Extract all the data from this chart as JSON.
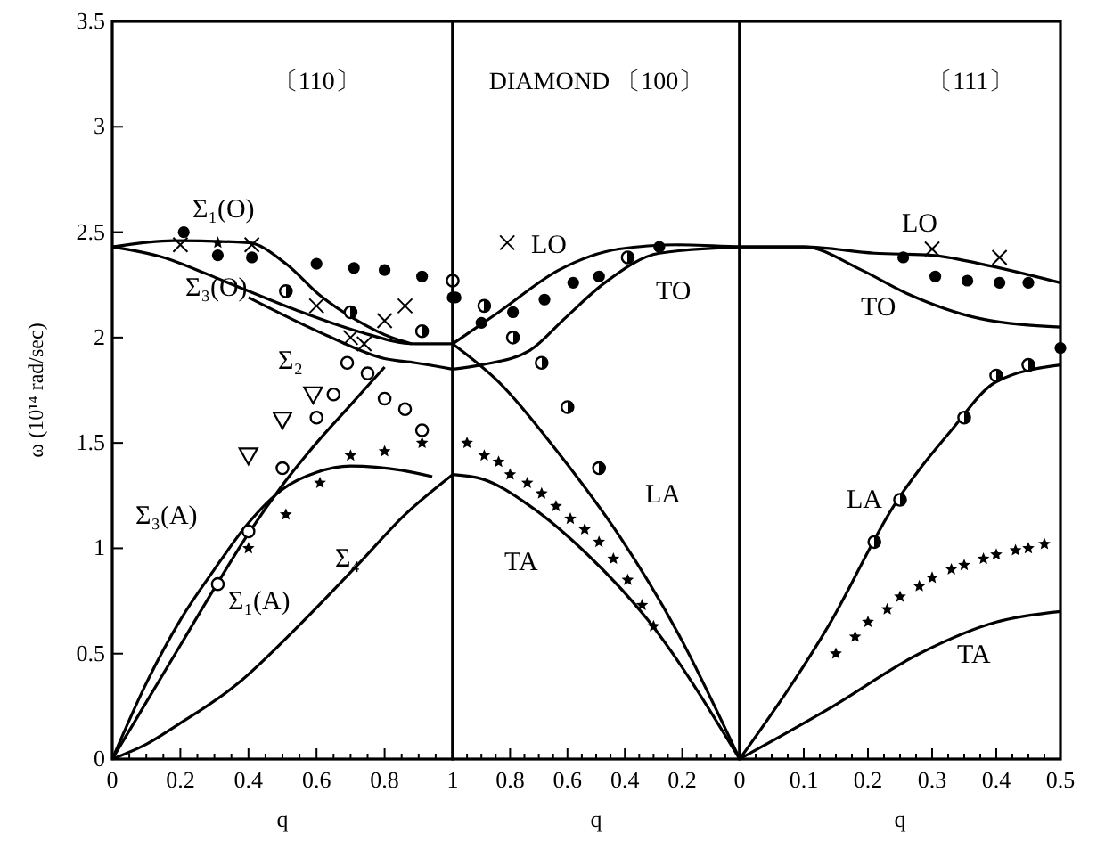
{
  "chart_data": [
    {
      "type": "line",
      "title": "〔110〕",
      "xlabel": "q",
      "ylabel": "ω (10¹⁴ rad/sec)",
      "xlim": [
        0,
        1
      ],
      "ylim": [
        0,
        3.5
      ],
      "xticks": [
        0,
        {
          "value": 0.05,
          "label": null
        },
        {
          "value": 0.1,
          "label": null
        },
        {
          "value": 0.15,
          "label": null
        },
        0.2,
        {
          "value": 0.25,
          "label": null
        },
        {
          "value": 0.3,
          "label": null
        },
        {
          "value": 0.35,
          "label": null
        },
        0.4,
        {
          "value": 0.45,
          "label": null
        },
        {
          "value": 0.5,
          "label": null
        },
        {
          "value": 0.55,
          "label": null
        },
        0.6,
        {
          "value": 0.65,
          "label": null
        },
        {
          "value": 0.7,
          "label": null
        },
        {
          "value": 0.75,
          "label": null
        },
        0.8,
        {
          "value": 0.85,
          "label": null
        },
        {
          "value": 0.9,
          "label": null
        },
        {
          "value": 0.95,
          "label": null
        },
        1
      ],
      "yticks": [
        0,
        0.5,
        1,
        1.5,
        2,
        2.5,
        3,
        3.5
      ],
      "series": [
        {
          "name": "Σ₁(O)",
          "color": "#000000",
          "x": [
            0,
            0.18,
            0.4,
            0.51,
            0.61,
            0.72,
            0.82,
            0.88
          ],
          "values": [
            2.43,
            2.46,
            2.45,
            2.35,
            2.2,
            2.08,
            2.0,
            1.97
          ]
        },
        {
          "name": "Σ₃(O)",
          "color": "#000000",
          "x": [
            0,
            0.15,
            0.28,
            0.37,
            0.54,
            0.72,
            0.89,
            1
          ],
          "values": [
            2.43,
            2.38,
            2.3,
            2.24,
            2.13,
            2.03,
            1.97,
            1.97
          ]
        },
        {
          "name": "Σ₂",
          "color": "#000000",
          "x": [
            0.4,
            0.63,
            0.8,
            0.89,
            1
          ],
          "values": [
            2.19,
            2.01,
            1.9,
            1.88,
            1.85
          ]
        },
        {
          "name": "Σ₃(A)",
          "color": "#000000",
          "x": [
            0,
            0.1,
            0.2,
            0.3,
            0.4,
            0.5,
            0.6,
            0.7,
            0.85,
            0.94
          ],
          "values": [
            0,
            0.36,
            0.66,
            0.9,
            1.12,
            1.28,
            1.36,
            1.39,
            1.37,
            1.34
          ]
        },
        {
          "name": "Σ₁(A)",
          "color": "#000000",
          "x": [
            0,
            0.1,
            0.2,
            0.3,
            0.4,
            0.5,
            0.6,
            0.7,
            0.8
          ],
          "values": [
            0,
            0.27,
            0.54,
            0.81,
            1.07,
            1.3,
            1.5,
            1.68,
            1.86
          ]
        },
        {
          "name": "Σ₄",
          "color": "#000000",
          "x": [
            0,
            0.1,
            0.19,
            0.37,
            0.54,
            0.72,
            0.86,
            1
          ],
          "values": [
            0,
            0.07,
            0.16,
            0.36,
            0.62,
            0.92,
            1.16,
            1.35
          ]
        },
        {
          "type": "scatter",
          "marker": "circle",
          "color": "#000000",
          "x": [
            0.21,
            0.31,
            0.41,
            0.6,
            0.71,
            0.8,
            0.91,
            1.0
          ],
          "values": [
            2.5,
            2.39,
            2.38,
            2.35,
            2.33,
            2.32,
            2.29,
            2.19
          ]
        },
        {
          "type": "scatter",
          "marker": "circle-half",
          "color": "#000000",
          "x": [
            0.51,
            0.7,
            0.91
          ],
          "values": [
            2.22,
            2.12,
            2.03
          ]
        },
        {
          "type": "scatter",
          "marker": "cross",
          "color": "#000000",
          "x": [
            0.2,
            0.41,
            0.6,
            0.7,
            0.74,
            0.8,
            0.86
          ],
          "values": [
            2.44,
            2.44,
            2.15,
            2.0,
            1.97,
            2.08,
            2.15
          ]
        },
        {
          "type": "scatter",
          "marker": "circle-open",
          "color": "#000000",
          "x": [
            1.0,
            0.69,
            0.75,
            0.65,
            0.8,
            0.86,
            0.6,
            0.91,
            0.5,
            0.4,
            0.31
          ],
          "values": [
            2.27,
            1.88,
            1.83,
            1.73,
            1.71,
            1.66,
            1.62,
            1.56,
            1.38,
            1.08,
            0.83
          ]
        },
        {
          "type": "scatter",
          "marker": "triangle-down",
          "color": "#000000",
          "x": [
            0.59,
            0.5,
            0.4
          ],
          "values": [
            1.73,
            1.61,
            1.44
          ]
        },
        {
          "type": "scatter",
          "marker": "star",
          "color": "#000000",
          "x": [
            0.31,
            0.4,
            0.51,
            0.61,
            0.7,
            0.8,
            0.91
          ],
          "values": [
            2.45,
            1.0,
            1.16,
            1.31,
            1.44,
            1.46,
            1.5
          ]
        }
      ]
    },
    {
      "type": "line",
      "title": "DIAMOND 〔100〕",
      "xlabel": "q",
      "xlim": [
        1,
        0
      ],
      "ylim": [
        0,
        3.5
      ],
      "tick_labels": "x",
      "xticks": [
        {
          "value": 1,
          "label": null
        },
        {
          "value": 0.95,
          "label": null
        },
        {
          "value": 0.9,
          "label": null
        },
        {
          "value": 0.85,
          "label": null
        },
        0.8,
        {
          "value": 0.75,
          "label": null
        },
        {
          "value": 0.7,
          "label": null
        },
        {
          "value": 0.65,
          "label": null
        },
        0.6,
        {
          "value": 0.55,
          "label": null
        },
        {
          "value": 0.5,
          "label": null
        },
        {
          "value": 0.45,
          "label": null
        },
        0.4,
        {
          "value": 0.35,
          "label": null
        },
        {
          "value": 0.3,
          "label": null
        },
        {
          "value": 0.25,
          "label": null
        },
        0.2,
        {
          "value": 0.15,
          "label": null
        },
        {
          "value": 0.1,
          "label": null
        },
        {
          "value": 0.05,
          "label": null
        },
        0
      ],
      "yticks": [
        0,
        0.5,
        1,
        1.5,
        2,
        2.5,
        3,
        3.5
      ],
      "series": [
        {
          "name": "LO",
          "color": "#000000",
          "x": [
            1,
            0.84,
            0.63,
            0.42,
            0.22,
            0
          ],
          "values": [
            1.97,
            2.12,
            2.32,
            2.42,
            2.44,
            2.43
          ]
        },
        {
          "name": "TO",
          "color": "#000000",
          "x": [
            1,
            0.9,
            0.73,
            0.61,
            0.47,
            0.28,
            0
          ],
          "values": [
            1.85,
            1.87,
            1.94,
            2.09,
            2.26,
            2.4,
            2.43
          ]
        },
        {
          "name": "LA",
          "color": "#000000",
          "x": [
            1,
            0.84,
            0.63,
            0.42,
            0.22,
            0
          ],
          "values": [
            1.97,
            1.79,
            1.45,
            1.06,
            0.61,
            0
          ]
        },
        {
          "name": "TA",
          "color": "#000000",
          "x": [
            1,
            0.9,
            0.73,
            0.53,
            0.32,
            0
          ],
          "values": [
            1.35,
            1.33,
            1.2,
            0.97,
            0.66,
            0
          ]
        },
        {
          "type": "scatter",
          "marker": "circle",
          "color": "#000000",
          "x": [
            0.99,
            0.9,
            0.79,
            0.68,
            0.58,
            0.49,
            0.28
          ],
          "values": [
            2.19,
            2.07,
            2.12,
            2.18,
            2.26,
            2.29,
            2.43
          ]
        },
        {
          "type": "scatter",
          "marker": "circle-half",
          "color": "#000000",
          "x": [
            0.89,
            0.79,
            0.69,
            0.6,
            0.49,
            0.39
          ],
          "values": [
            2.15,
            2.0,
            1.88,
            1.67,
            1.38,
            2.38
          ]
        },
        {
          "type": "scatter",
          "marker": "cross",
          "color": "#000000",
          "x": [
            0.81
          ],
          "values": [
            2.45
          ]
        },
        {
          "type": "scatter",
          "marker": "star",
          "color": "#000000",
          "x": [
            0.95,
            0.89,
            0.84,
            0.8,
            0.74,
            0.69,
            0.64,
            0.59,
            0.54,
            0.49,
            0.44,
            0.39,
            0.34,
            0.3
          ],
          "values": [
            1.5,
            1.44,
            1.41,
            1.35,
            1.31,
            1.26,
            1.2,
            1.14,
            1.09,
            1.03,
            0.95,
            0.85,
            0.73,
            0.63
          ]
        }
      ]
    },
    {
      "type": "line",
      "title": "〔111〕",
      "xlabel": "q",
      "xlim": [
        0,
        0.5
      ],
      "ylim": [
        0,
        3.5
      ],
      "tick_labels": "x",
      "xticks": [
        {
          "value": 0,
          "label": null
        },
        {
          "value": 0.025,
          "label": null
        },
        {
          "value": 0.05,
          "label": null
        },
        {
          "value": 0.075,
          "label": null
        },
        0.1,
        {
          "value": 0.125,
          "label": null
        },
        {
          "value": 0.15,
          "label": null
        },
        {
          "value": 0.175,
          "label": null
        },
        0.2,
        {
          "value": 0.225,
          "label": null
        },
        {
          "value": 0.25,
          "label": null
        },
        {
          "value": 0.275,
          "label": null
        },
        0.3,
        {
          "value": 0.325,
          "label": null
        },
        {
          "value": 0.35,
          "label": null
        },
        {
          "value": 0.375,
          "label": null
        },
        0.4,
        {
          "value": 0.425,
          "label": null
        },
        {
          "value": 0.45,
          "label": null
        },
        {
          "value": 0.475,
          "label": null
        },
        0.5
      ],
      "yticks": [
        0,
        0.5,
        1,
        1.5,
        2,
        2.5,
        3,
        3.5
      ],
      "series": [
        {
          "name": "LO",
          "color": "#000000",
          "x": [
            0,
            0.1,
            0.21,
            0.3,
            0.375,
            0.5
          ],
          "values": [
            2.43,
            2.43,
            2.4,
            2.39,
            2.35,
            2.26
          ]
        },
        {
          "name": "TO",
          "color": "#000000",
          "x": [
            0,
            0.1,
            0.19,
            0.26,
            0.375,
            0.5
          ],
          "values": [
            2.43,
            2.43,
            2.32,
            2.21,
            2.09,
            2.05
          ]
        },
        {
          "name": "LA",
          "color": "#000000",
          "x": [
            0,
            0.14,
            0.24,
            0.33,
            0.4,
            0.5
          ],
          "values": [
            0,
            0.64,
            1.2,
            1.56,
            1.79,
            1.87
          ]
        },
        {
          "name": "TA",
          "color": "#000000",
          "x": [
            0,
            0.14,
            0.28,
            0.4,
            0.5
          ],
          "values": [
            0,
            0.24,
            0.5,
            0.65,
            0.7
          ]
        },
        {
          "type": "scatter",
          "marker": "circle",
          "color": "#000000",
          "x": [
            0.255,
            0.305,
            0.355,
            0.405,
            0.45,
            0.5
          ],
          "values": [
            2.38,
            2.29,
            2.27,
            2.26,
            2.26,
            1.95
          ]
        },
        {
          "type": "scatter",
          "marker": "cross",
          "color": "#000000",
          "x": [
            0.3,
            0.405
          ],
          "values": [
            2.42,
            2.38
          ]
        },
        {
          "type": "scatter",
          "marker": "circle-half",
          "color": "#000000",
          "x": [
            0.21,
            0.25,
            0.35,
            0.4,
            0.45
          ],
          "values": [
            1.03,
            1.23,
            1.62,
            1.82,
            1.87
          ]
        },
        {
          "type": "scatter",
          "marker": "star",
          "color": "#000000",
          "x": [
            0.15,
            0.18,
            0.2,
            0.23,
            0.25,
            0.28,
            0.3,
            0.33,
            0.35,
            0.38,
            0.4,
            0.43,
            0.45,
            0.475
          ],
          "values": [
            0.5,
            0.58,
            0.65,
            0.71,
            0.77,
            0.82,
            0.86,
            0.9,
            0.92,
            0.95,
            0.97,
            0.99,
            1.0,
            1.02
          ]
        }
      ]
    }
  ]
}
